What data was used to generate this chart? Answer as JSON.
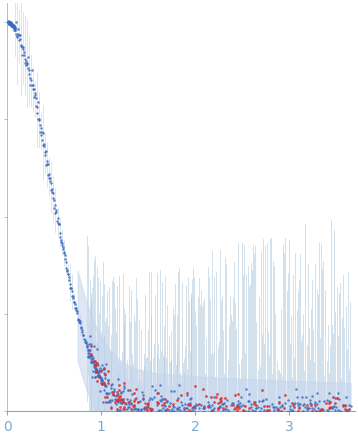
{
  "title": "",
  "xlabel": "",
  "ylabel": "",
  "xlim": [
    0,
    3.7
  ],
  "ylim": [
    0,
    1.05
  ],
  "bg_color": "#ffffff",
  "blue_dot_color": "#3a6bbf",
  "red_dot_color": "#d93030",
  "error_band_color": "#c5d5ee",
  "error_line_color": "#a0bdd8",
  "axis_color": "#7aaccf",
  "tick_color": "#7aaccf",
  "tick_label_color": "#7aaccf",
  "dot_size_blue": 3,
  "dot_size_red": 4,
  "seed_blue": 42,
  "seed_red": 77
}
